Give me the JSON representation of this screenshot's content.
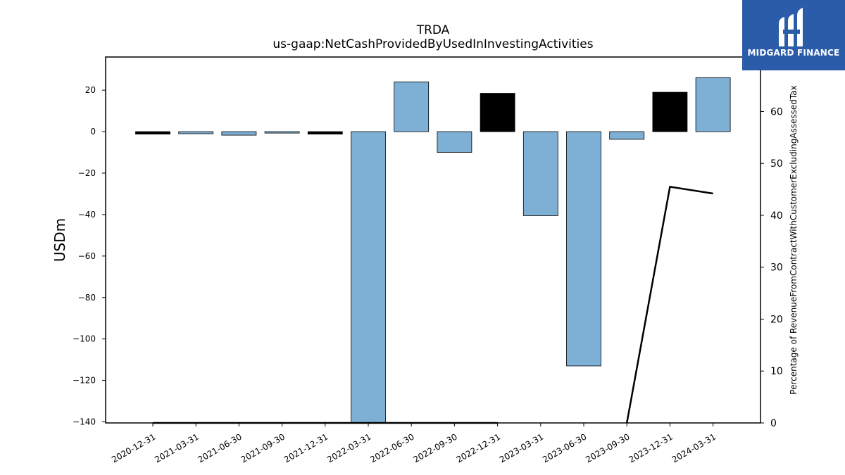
{
  "brand": {
    "name": "MIDGARD FINANCE",
    "bg_color": "#2a5caa"
  },
  "chart_data": {
    "type": "bar",
    "title": "TRDA",
    "subtitle": "us-gaap:NetCashProvidedByUsedInInvestingActivities",
    "ylabel": "USDm",
    "y2label": "Percentage of RevenueFromContractWithCustomerExcludingAssessedTax",
    "ylim": [
      -140.5,
      36
    ],
    "y2lim": [
      0,
      70.5
    ],
    "yticks": [
      20,
      0,
      -20,
      -40,
      -60,
      -80,
      -100,
      -120,
      -140
    ],
    "y2ticks": [
      0,
      10,
      20,
      30,
      40,
      50,
      60,
      70
    ],
    "categories": [
      "2020-12-31",
      "2021-03-31",
      "2021-06-30",
      "2021-09-30",
      "2021-12-31",
      "2022-03-31",
      "2022-06-30",
      "2022-09-30",
      "2022-12-31",
      "2023-03-31",
      "2023-06-30",
      "2023-09-30",
      "2023-12-31",
      "2024-03-31"
    ],
    "values": [
      -1.2,
      -1.0,
      -1.7,
      -0.7,
      -1.2,
      -145,
      24,
      -10,
      18.5,
      -40.5,
      -113,
      -3.7,
      19,
      26
    ],
    "bar_colors": [
      "#000000",
      "#7eb0d5",
      "#7eb0d5",
      "#7eb0d5",
      "#000000",
      "#7eb0d5",
      "#7eb0d5",
      "#7eb0d5",
      "#000000",
      "#7eb0d5",
      "#7eb0d5",
      "#7eb0d5",
      "#000000",
      "#7eb0d5"
    ],
    "line_series": {
      "axis": "right",
      "color": "#000000",
      "segments": [
        {
          "x": [
            "2020-12-31",
            "2021-03-31",
            "2021-06-30",
            "2021-09-30",
            "2021-12-31",
            "2022-03-31",
            "2022-06-30",
            "2022-09-30",
            "2022-12-31"
          ],
          "y": [
            0,
            0,
            0,
            0,
            0,
            0,
            0,
            0,
            0
          ]
        },
        {
          "x": [
            "2023-09-30",
            "2023-12-31",
            "2024-03-31"
          ],
          "y": [
            0,
            45.5,
            44.2
          ]
        }
      ]
    },
    "grid": false
  }
}
